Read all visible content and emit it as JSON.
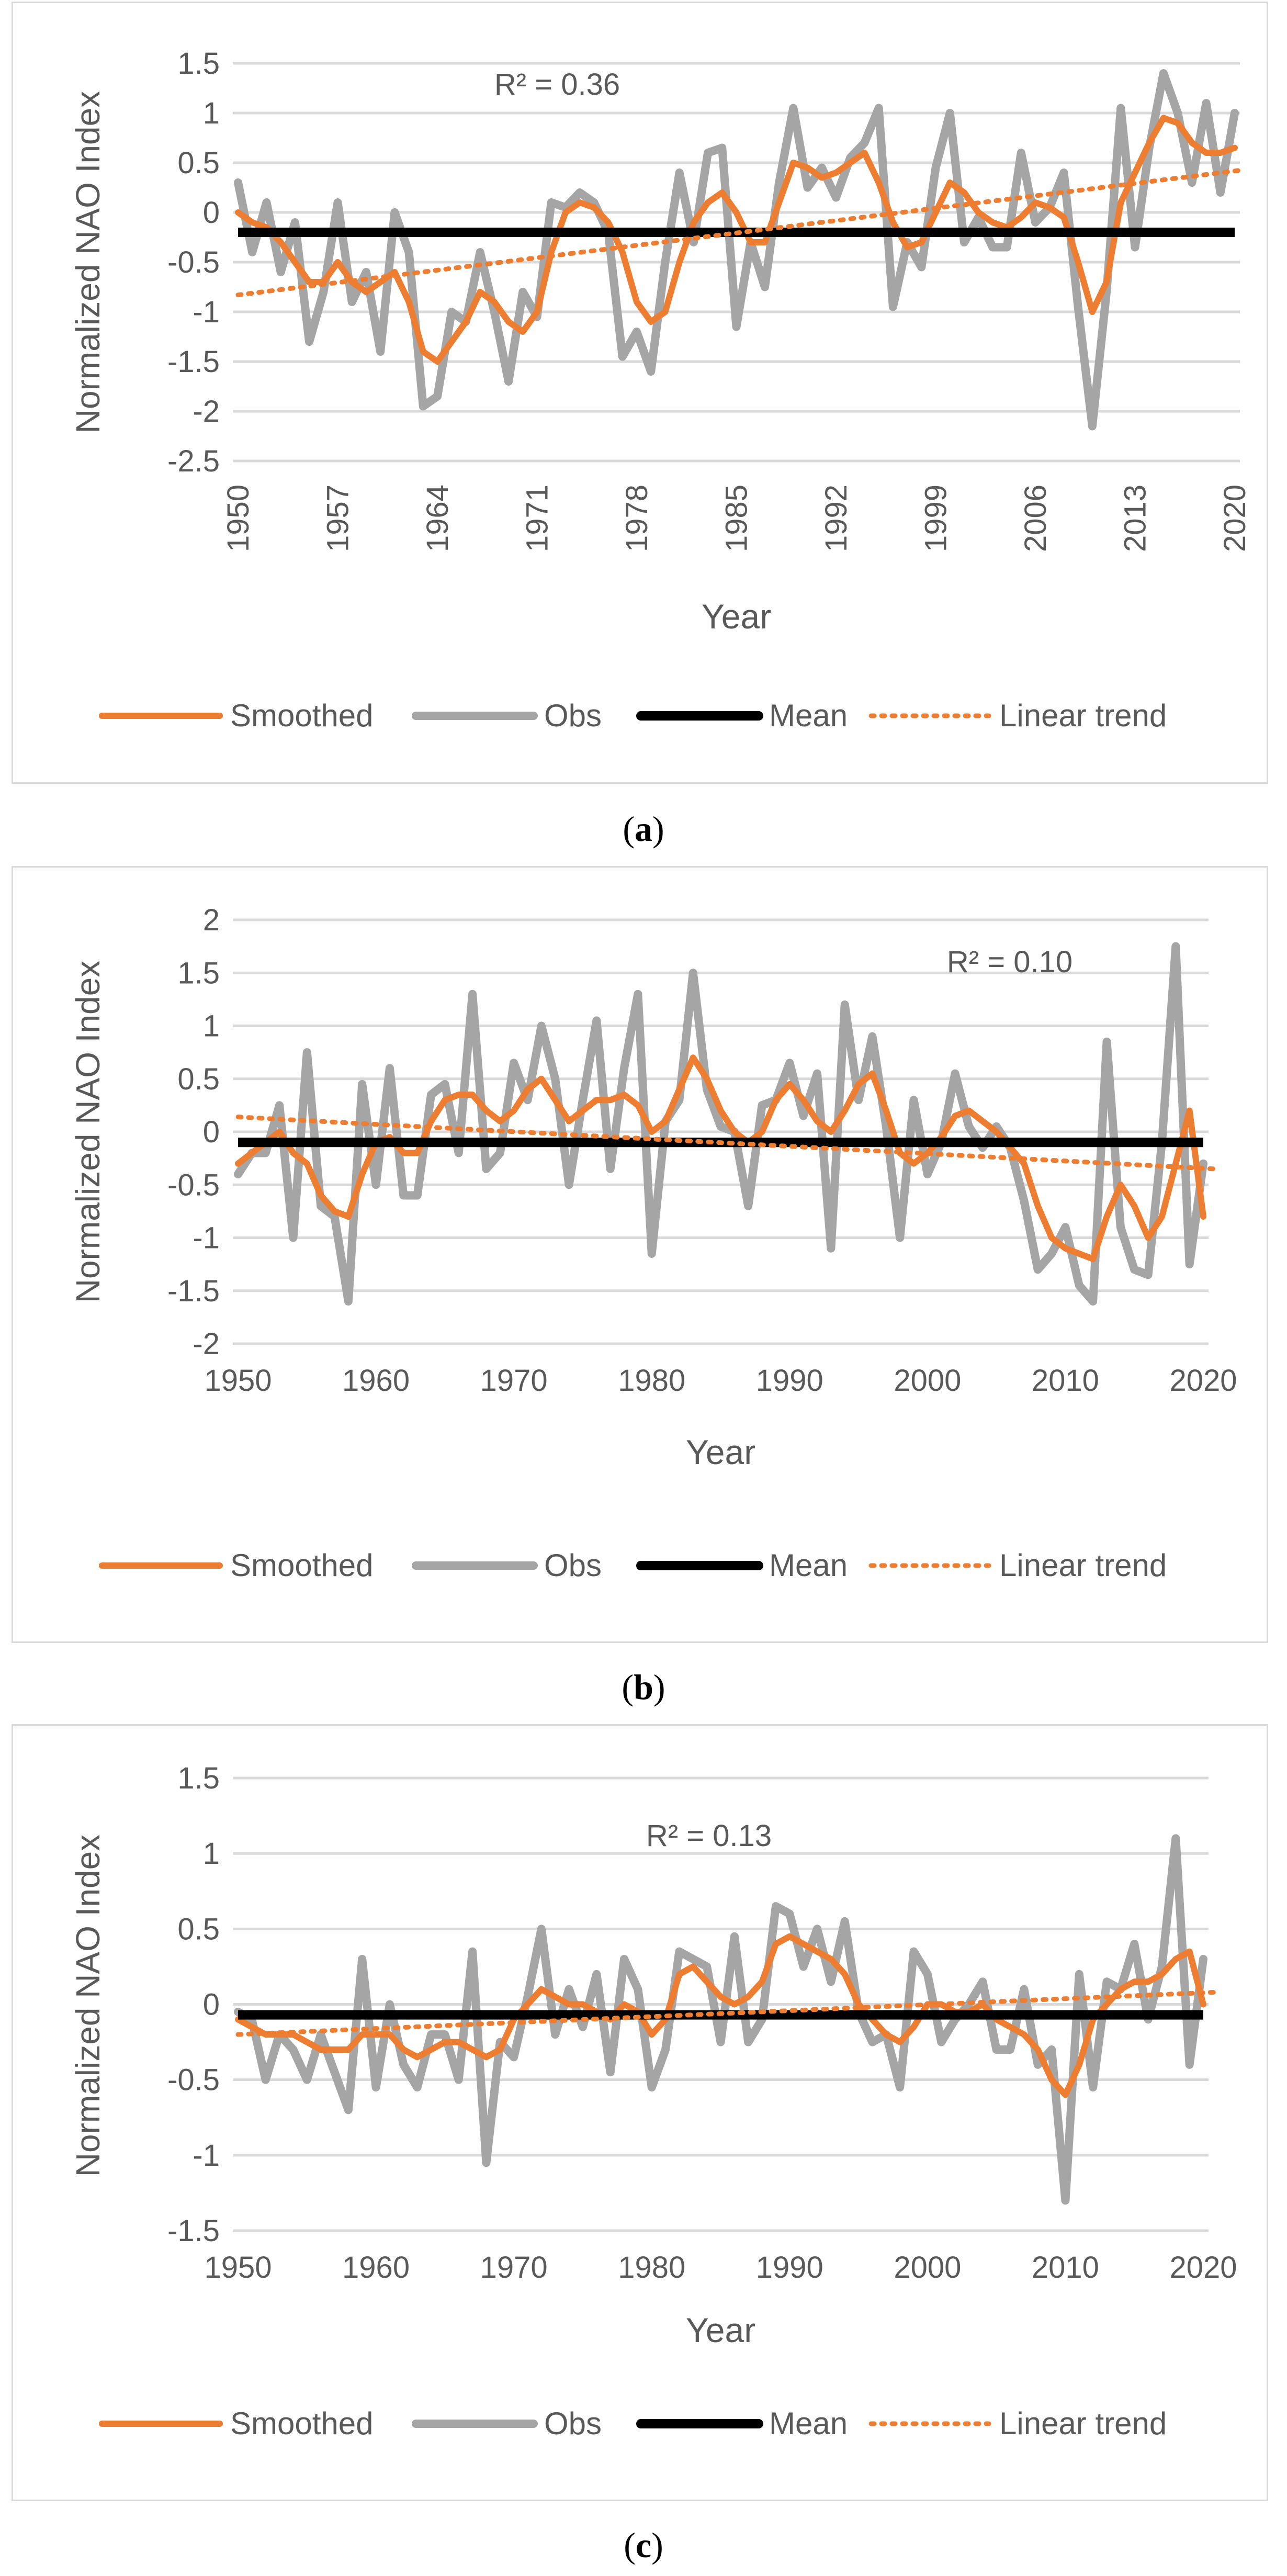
{
  "colors": {
    "smoothed": "#ed7d31",
    "obs": "#a5a5a5",
    "mean": "#000000",
    "trend": "#ed7d31",
    "grid": "#d9d9d9",
    "text": "#595959"
  },
  "chart_data": [
    {
      "type": "line",
      "panel_label": "a",
      "ylabel": "Normalized NAO Index",
      "xlabel": "Year",
      "annotation": "R² = 0.36",
      "ylim": [
        -2.5,
        1.5
      ],
      "yticks": [
        "1.5",
        "1",
        "0.5",
        "0",
        "-0.5",
        "-1",
        "-1.5",
        "-2",
        "-2.5"
      ],
      "xticks": [
        "1950",
        "1957",
        "1964",
        "1971",
        "1978",
        "1985",
        "1992",
        "1999",
        "2006",
        "2013",
        "2020"
      ],
      "x_start": 1950,
      "x_end": 2021,
      "legend_position": "bottom",
      "series": [
        {
          "name": "Smoothed",
          "values": [
            0.0,
            -0.1,
            -0.15,
            -0.3,
            -0.5,
            -0.7,
            -0.7,
            -0.5,
            -0.7,
            -0.8,
            -0.7,
            -0.6,
            -0.9,
            -1.4,
            -1.5,
            -1.3,
            -1.1,
            -0.8,
            -0.9,
            -1.1,
            -1.2,
            -1.0,
            -0.4,
            0.0,
            0.1,
            0.05,
            -0.1,
            -0.4,
            -0.9,
            -1.1,
            -1.0,
            -0.5,
            -0.1,
            0.1,
            0.2,
            0.0,
            -0.3,
            -0.3,
            0.1,
            0.5,
            0.45,
            0.35,
            0.4,
            0.5,
            0.6,
            0.3,
            -0.1,
            -0.35,
            -0.3,
            0.0,
            0.3,
            0.2,
            0.0,
            -0.1,
            -0.15,
            -0.05,
            0.1,
            0.05,
            -0.05,
            -0.5,
            -1.0,
            -0.7,
            0.1,
            0.4,
            0.7,
            0.95,
            0.9,
            0.7,
            0.6,
            0.6,
            0.65
          ]
        },
        {
          "name": "Obs",
          "values": [
            0.3,
            -0.4,
            0.1,
            -0.6,
            -0.1,
            -1.3,
            -0.8,
            0.1,
            -0.9,
            -0.6,
            -1.4,
            0.0,
            -0.4,
            -1.95,
            -1.85,
            -1.0,
            -1.1,
            -0.4,
            -1.0,
            -1.7,
            -0.8,
            -1.05,
            0.1,
            0.05,
            0.2,
            0.1,
            -0.2,
            -1.45,
            -1.2,
            -1.6,
            -0.5,
            0.4,
            -0.3,
            0.6,
            0.65,
            -1.15,
            -0.3,
            -0.75,
            0.3,
            1.05,
            0.25,
            0.45,
            0.15,
            0.55,
            0.7,
            1.05,
            -0.95,
            -0.3,
            -0.55,
            0.45,
            1.0,
            -0.3,
            -0.05,
            -0.35,
            -0.35,
            0.6,
            -0.1,
            0.05,
            0.4,
            -0.95,
            -2.15,
            -0.8,
            1.05,
            -0.35,
            0.65,
            1.4,
            1.0,
            0.3,
            1.1,
            0.2,
            1.0
          ]
        },
        {
          "name": "Mean",
          "values": [
            -0.2,
            -0.2
          ]
        },
        {
          "name": "Linear trend",
          "values": [
            -0.83,
            0.43
          ]
        }
      ]
    },
    {
      "type": "line",
      "panel_label": "b",
      "ylabel": "Normalized NAO Index",
      "xlabel": "Year",
      "annotation": "R² = 0.10",
      "ylim": [
        -2,
        2
      ],
      "yticks": [
        "2",
        "1.5",
        "1",
        "0.5",
        "0",
        "-0.5",
        "-1",
        "-1.5",
        "-2"
      ],
      "xticks": [
        "1950",
        "1960",
        "1970",
        "1980",
        "1990",
        "2000",
        "2010",
        "2020"
      ],
      "x_start": 1950,
      "x_end": 2020,
      "legend_position": "bottom",
      "series": [
        {
          "name": "Smoothed",
          "values": [
            -0.3,
            -0.2,
            -0.1,
            0.0,
            -0.2,
            -0.3,
            -0.6,
            -0.75,
            -0.8,
            -0.4,
            -0.1,
            -0.05,
            -0.2,
            -0.2,
            0.1,
            0.3,
            0.35,
            0.35,
            0.2,
            0.1,
            0.2,
            0.4,
            0.5,
            0.3,
            0.1,
            0.2,
            0.3,
            0.3,
            0.35,
            0.25,
            0.0,
            0.1,
            0.4,
            0.7,
            0.5,
            0.2,
            0.0,
            -0.1,
            0.0,
            0.3,
            0.45,
            0.3,
            0.1,
            0.0,
            0.2,
            0.45,
            0.55,
            0.2,
            -0.2,
            -0.3,
            -0.2,
            -0.05,
            0.15,
            0.2,
            0.1,
            0.0,
            -0.15,
            -0.3,
            -0.7,
            -1.0,
            -1.1,
            -1.15,
            -1.2,
            -0.8,
            -0.5,
            -0.7,
            -1.0,
            -0.8,
            -0.3,
            0.2,
            -0.8
          ]
        },
        {
          "name": "Obs",
          "values": [
            -0.4,
            -0.2,
            -0.2,
            0.25,
            -1.0,
            0.75,
            -0.7,
            -0.8,
            -1.6,
            0.45,
            -0.5,
            0.6,
            -0.6,
            -0.6,
            0.35,
            0.45,
            -0.2,
            1.3,
            -0.35,
            -0.2,
            0.65,
            0.3,
            1.0,
            0.5,
            -0.5,
            0.3,
            1.05,
            -0.35,
            0.6,
            1.3,
            -1.15,
            0.1,
            0.3,
            1.5,
            0.4,
            0.05,
            0.0,
            -0.7,
            0.25,
            0.3,
            0.65,
            0.15,
            0.55,
            -1.1,
            1.2,
            0.3,
            0.9,
            0.05,
            -1.0,
            0.3,
            -0.4,
            -0.1,
            0.55,
            0.05,
            -0.15,
            0.05,
            -0.15,
            -0.65,
            -1.3,
            -1.15,
            -0.9,
            -1.45,
            -1.6,
            0.85,
            -0.9,
            -1.3,
            -1.35,
            -0.1,
            1.75,
            -1.25,
            -0.3
          ]
        },
        {
          "name": "Mean",
          "values": [
            -0.1,
            -0.1
          ]
        },
        {
          "name": "Linear trend",
          "values": [
            0.14,
            -0.35
          ]
        }
      ]
    },
    {
      "type": "line",
      "panel_label": "c",
      "ylabel": "Normalized NAO Index",
      "xlabel": "Year",
      "annotation": "R² = 0.13",
      "ylim": [
        -1.5,
        1.5
      ],
      "yticks": [
        "1.5",
        "1",
        "0.5",
        "0",
        "-0.5",
        "-1",
        "-1.5"
      ],
      "xticks": [
        "1950",
        "1960",
        "1970",
        "1980",
        "1990",
        "2000",
        "2010",
        "2020"
      ],
      "x_start": 1950,
      "x_end": 2020,
      "legend_position": "bottom",
      "series": [
        {
          "name": "Smoothed",
          "values": [
            -0.1,
            -0.15,
            -0.2,
            -0.2,
            -0.2,
            -0.25,
            -0.3,
            -0.3,
            -0.3,
            -0.2,
            -0.2,
            -0.2,
            -0.3,
            -0.35,
            -0.3,
            -0.25,
            -0.25,
            -0.3,
            -0.35,
            -0.3,
            -0.1,
            0.0,
            0.1,
            0.05,
            0.0,
            0.0,
            -0.05,
            -0.1,
            0.0,
            -0.05,
            -0.2,
            -0.1,
            0.2,
            0.25,
            0.15,
            0.05,
            0.0,
            0.05,
            0.15,
            0.4,
            0.45,
            0.4,
            0.35,
            0.3,
            0.2,
            0.0,
            -0.1,
            -0.2,
            -0.25,
            -0.15,
            0.0,
            0.0,
            -0.05,
            -0.05,
            0.0,
            -0.1,
            -0.15,
            -0.2,
            -0.3,
            -0.5,
            -0.6,
            -0.4,
            -0.1,
            0.0,
            0.1,
            0.15,
            0.15,
            0.2,
            0.3,
            0.35,
            0.0
          ]
        },
        {
          "name": "Obs",
          "values": [
            -0.05,
            -0.1,
            -0.5,
            -0.2,
            -0.3,
            -0.5,
            -0.2,
            -0.45,
            -0.7,
            0.3,
            -0.55,
            0.0,
            -0.4,
            -0.55,
            -0.2,
            -0.2,
            -0.5,
            0.35,
            -1.05,
            -0.25,
            -0.35,
            0.05,
            0.5,
            -0.2,
            0.1,
            -0.15,
            0.2,
            -0.45,
            0.3,
            0.1,
            -0.55,
            -0.3,
            0.35,
            0.3,
            0.25,
            -0.25,
            0.45,
            -0.25,
            -0.1,
            0.65,
            0.6,
            0.25,
            0.5,
            0.15,
            0.55,
            -0.05,
            -0.25,
            -0.2,
            -0.55,
            0.35,
            0.2,
            -0.25,
            -0.1,
            0.0,
            0.15,
            -0.3,
            -0.3,
            0.1,
            -0.4,
            -0.3,
            -1.3,
            0.2,
            -0.55,
            0.15,
            0.1,
            0.4,
            -0.1,
            0.25,
            1.1,
            -0.4,
            0.3
          ]
        },
        {
          "name": "Mean",
          "values": [
            -0.07,
            -0.07
          ]
        },
        {
          "name": "Linear trend",
          "values": [
            -0.2,
            0.08
          ]
        }
      ]
    }
  ],
  "captions": [
    {
      "before": "(",
      "label": "a",
      "after": ")"
    },
    {
      "before": "(",
      "label": "b",
      "after": ")"
    },
    {
      "before": "(",
      "label": "c",
      "after": ")"
    }
  ]
}
